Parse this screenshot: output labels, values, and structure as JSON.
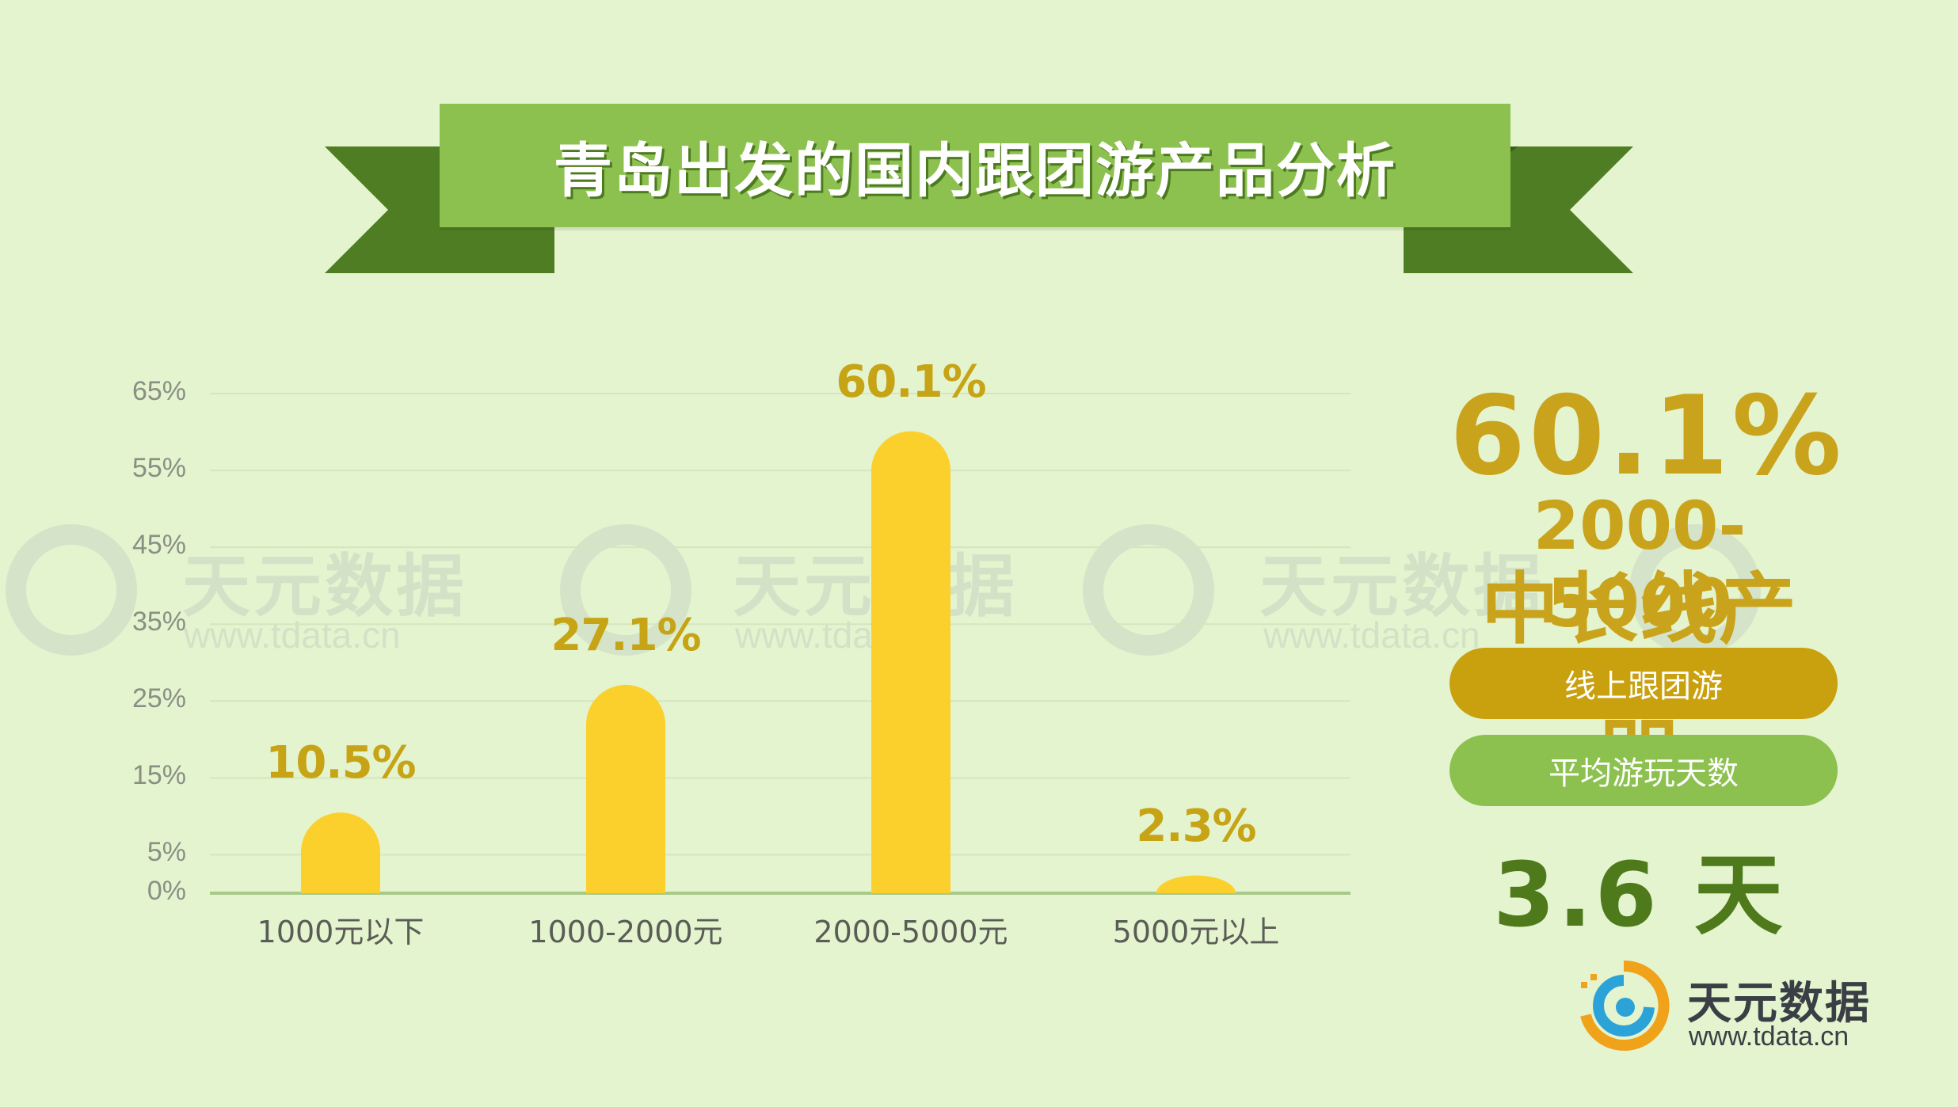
{
  "title": "青岛出发的国内跟团游产品分析",
  "colors": {
    "background": "#e4f4cf",
    "banner": "#8cc04f",
    "banner_dark": "#4f7d23",
    "bar": "#fcd02c",
    "gold": "#c9a31b",
    "green_dark": "#4e7a1b"
  },
  "watermark": {
    "name": "天元数据",
    "url": "www.tdata.cn"
  },
  "chart_data": {
    "type": "bar",
    "categories": [
      "1000元以下",
      "1000-2000元",
      "2000-5000元",
      "5000元以上"
    ],
    "values": [
      10.5,
      27.1,
      60.1,
      2.3
    ],
    "value_labels": [
      "10.5%",
      "27.1%",
      "60.1%",
      "2.3%"
    ],
    "yticks": [
      "0%",
      "5%",
      "15%",
      "25%",
      "35%",
      "45%",
      "55%",
      "65%"
    ],
    "ytick_values": [
      0,
      5,
      15,
      25,
      35,
      45,
      55,
      65
    ],
    "ylim": [
      0,
      65
    ],
    "grid": true,
    "legend": "none"
  },
  "highlight": {
    "percent": "60.1%",
    "range": "2000-5000",
    "category": "中长线产品",
    "pill_online": "线上跟团游",
    "pill_avg": "平均游玩天数",
    "days": "3.6 天"
  },
  "logo": {
    "name": "天元数据",
    "url": "www.tdata.cn"
  }
}
